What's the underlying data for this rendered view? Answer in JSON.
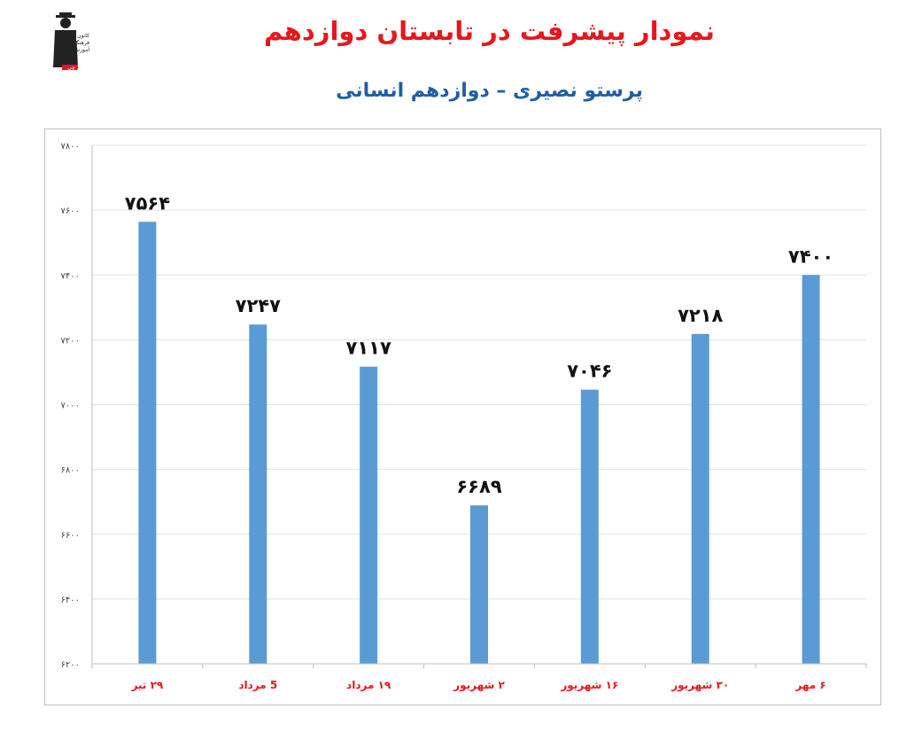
{
  "page": {
    "title": "نمودار پیشرفت در تابستان دوازدهم",
    "subtitle": "پرستو نصیری – دوازدهم انسانی"
  },
  "logo": {
    "lines": [
      "کانون",
      "فرهنگی",
      "آموزش",
      "قلم چی"
    ]
  },
  "colors": {
    "bar": "#5b9bd5",
    "title": "#e8161b",
    "subtitle": "#1f5ea8",
    "xtick": "#e8161b",
    "grid": "#d9e3ef"
  },
  "chart_data": {
    "type": "bar",
    "categories": [
      "۲۹ تیر",
      "5 مرداد",
      "۱۹ مرداد",
      "۲ شهریور",
      "۱۶ شهریور",
      "۳۰ شهریور",
      "۶ مهر"
    ],
    "values": [
      7564,
      7247,
      7117,
      6689,
      7046,
      7218,
      7400
    ],
    "data_labels": [
      "۷۵۶۴",
      "۷۲۴۷",
      "۷۱۱۷",
      "۶۶۸۹",
      "۷۰۴۶",
      "۷۲۱۸",
      "۷۴۰۰"
    ],
    "yticks": [
      6200,
      6400,
      6600,
      6800,
      7000,
      7200,
      7400,
      7600,
      7800
    ],
    "ytick_labels": [
      "۶۲۰۰",
      "۶۴۰۰",
      "۶۶۰۰",
      "۶۸۰۰",
      "۷۰۰۰",
      "۷۲۰۰",
      "۷۴۰۰",
      "۷۶۰۰",
      "۷۸۰۰"
    ],
    "ylim": [
      6200,
      7800
    ],
    "grid": true,
    "legend": "none",
    "title": "نمودار پیشرفت در تابستان دوازدهم",
    "subtitle": "پرستو نصیری – دوازدهم انسانی",
    "xlabel": "",
    "ylabel": ""
  }
}
